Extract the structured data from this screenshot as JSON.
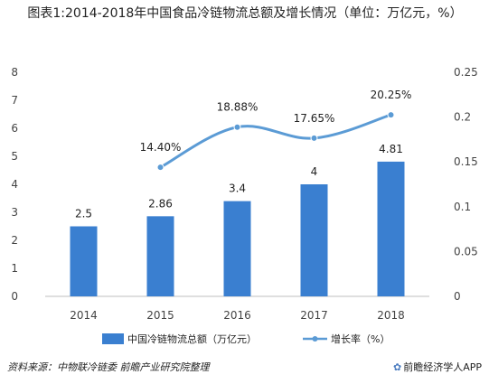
{
  "title": "图表1:2014-2018年中国食品冷链物流总额及增长情况（单位：万亿元，%）",
  "footer": {
    "source": "资料来源：中物联冷链委 前瞻产业研究院整理",
    "brand": "前瞻经济学人APP",
    "brand_icon": "brand-logo-icon"
  },
  "colors": {
    "bar": "#3a7fd0",
    "line": "#5b9bd5",
    "marker": "#5b9bd5"
  },
  "chart_data": {
    "type": "bar",
    "categories": [
      "2014",
      "2015",
      "2016",
      "2017",
      "2018"
    ],
    "series": [
      {
        "name": "中国冷链物流总额（万亿元）",
        "type": "bar",
        "axis": "left",
        "values": [
          2.5,
          2.86,
          3.4,
          4,
          4.81
        ],
        "labels": [
          "2.5",
          "2.86",
          "3.4",
          "4",
          "4.81"
        ]
      },
      {
        "name": "增长率（%）",
        "type": "line",
        "axis": "right",
        "x": [
          "2015",
          "2016",
          "2017",
          "2018"
        ],
        "values": [
          0.144,
          0.1888,
          0.1765,
          0.2025
        ],
        "labels": [
          "14.40%",
          "18.88%",
          "17.65%",
          "20.25%"
        ]
      }
    ],
    "y_left": {
      "lim": [
        0,
        8
      ],
      "ticks": [
        "0",
        "1",
        "2",
        "3",
        "4",
        "5",
        "6",
        "7",
        "8"
      ]
    },
    "y_right": {
      "lim": [
        0,
        0.25
      ],
      "ticks": [
        "0",
        "0.05",
        "0.1",
        "0.15",
        "0.2",
        "0.25"
      ]
    },
    "grid": false,
    "legend_position": "bottom"
  }
}
